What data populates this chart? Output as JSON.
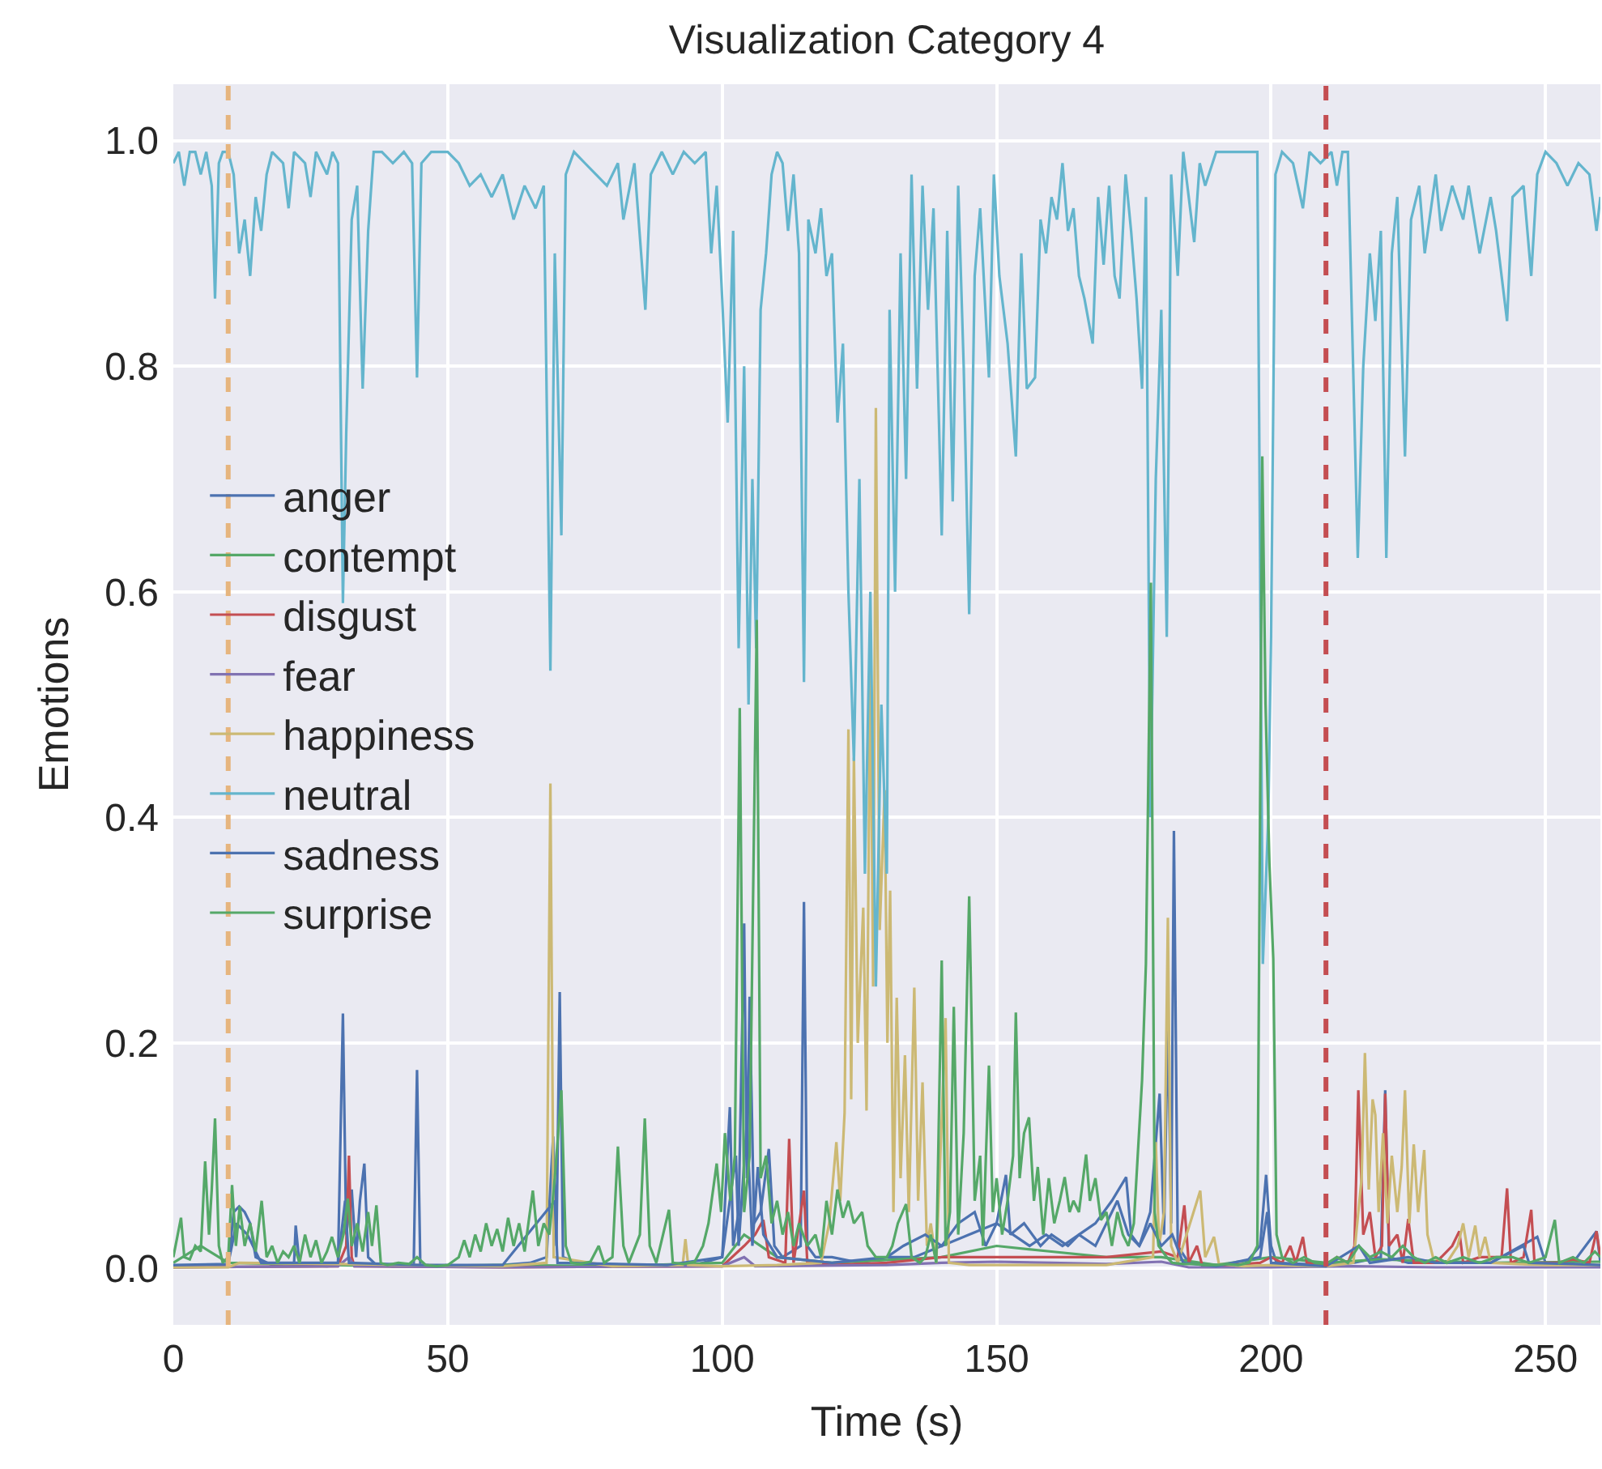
{
  "chart_data": {
    "type": "line",
    "title": "Visualization Category 4",
    "xlabel": "Time (s)",
    "ylabel": "Emotions",
    "xlim": [
      0,
      260
    ],
    "xticks": [
      0,
      50,
      100,
      150,
      200,
      250
    ],
    "ylim": [
      -0.05,
      1.05
    ],
    "yticks": [
      {
        "value": 0,
        "label": "0.0"
      },
      {
        "value": 0.2,
        "label": "0.2"
      },
      {
        "value": 0.4,
        "label": "0.4"
      },
      {
        "value": 0.6,
        "label": "0.6"
      },
      {
        "value": 0.8,
        "label": "0.8"
      },
      {
        "value": 1.0,
        "label": "1.0"
      }
    ],
    "grid": true,
    "legend": "left",
    "ref_lines": [
      {
        "axis": "x",
        "value": 10,
        "color": "#e6b57e",
        "line_style": "dashed"
      },
      {
        "axis": "x",
        "value": 210,
        "color": "#c44e52",
        "line_style": "dashed"
      }
    ],
    "series": [
      {
        "name": "anger",
        "color": "#4c72b0",
        "x": [
          0,
          5,
          10,
          11,
          12,
          13,
          14,
          15,
          18,
          22,
          22.3,
          23,
          28,
          30,
          30.9,
          31.5,
          32.5,
          33.3,
          34,
          34.8,
          35.5,
          37,
          40,
          43.8,
          44.4,
          45,
          50,
          60,
          65,
          68,
          69.2,
          69.8,
          70.4,
          71,
          75,
          85,
          95,
          100,
          101.4,
          102,
          103,
          104,
          104.5,
          105,
          105.8,
          107,
          108.5,
          109.5,
          111,
          114.3,
          114.9,
          115.5,
          117,
          120,
          125,
          130,
          135,
          140,
          145,
          150,
          151.7,
          152.5,
          155,
          158,
          160,
          163,
          165,
          168,
          171,
          173.6,
          174.5,
          176,
          178,
          179.7,
          180.5,
          181.2,
          181.8,
          182.3,
          183,
          185,
          190,
          195,
          198,
          199.1,
          200,
          201,
          210,
          215,
          220,
          220.8,
          221.5,
          225,
          230,
          240,
          248.5,
          250,
          255,
          259.3,
          260
        ],
        "values": [
          0.002,
          0.003,
          0.002,
          0.05,
          0.055,
          0.05,
          0.04,
          0.01,
          0.003,
          0.005,
          0.038,
          0.003,
          0.002,
          0.003,
          0.226,
          0.03,
          0.07,
          0.01,
          0.06,
          0.093,
          0.01,
          0.003,
          0.002,
          0.003,
          0.176,
          0.003,
          0.002,
          0.003,
          0.005,
          0.01,
          0.117,
          0.02,
          0.245,
          0.01,
          0.003,
          0.003,
          0.003,
          0.01,
          0.143,
          0.02,
          0.05,
          0.306,
          0.08,
          0.241,
          0.04,
          0.05,
          0.106,
          0.02,
          0.01,
          0.02,
          0.325,
          0.02,
          0.01,
          0.01,
          0.005,
          0.01,
          0.01,
          0.02,
          0.03,
          0.04,
          0.083,
          0.03,
          0.04,
          0.02,
          0.03,
          0.02,
          0.03,
          0.04,
          0.06,
          0.081,
          0.03,
          0.02,
          0.05,
          0.155,
          0.03,
          0.222,
          0.04,
          0.388,
          0.02,
          0.005,
          0.003,
          0.003,
          0.02,
          0.083,
          0.02,
          0.005,
          0.003,
          0.005,
          0.01,
          0.158,
          0.01,
          0.005,
          0.005,
          0.005,
          0.028,
          0.005,
          0.005,
          0.033,
          0.005
        ]
      },
      {
        "name": "contempt",
        "color": "#55a868",
        "x": [
          0,
          5,
          10,
          20,
          40,
          60,
          80,
          100,
          104,
          110,
          120,
          140,
          150,
          160,
          170,
          180,
          190,
          200,
          210,
          220,
          240,
          260
        ],
        "values": [
          0.005,
          0.02,
          0.005,
          0.004,
          0.002,
          0.003,
          0.002,
          0.005,
          0.03,
          0.01,
          0.005,
          0.01,
          0.02,
          0.015,
          0.01,
          0.01,
          0.003,
          0.01,
          0.005,
          0.008,
          0.005,
          0.006
        ]
      },
      {
        "name": "disgust",
        "color": "#c44e52",
        "x": [
          0,
          30,
          31.5,
          32,
          32.5,
          33,
          60,
          100,
          104,
          106,
          107.5,
          108.5,
          111.5,
          112.2,
          113,
          114.9,
          115.5,
          120,
          130,
          140,
          150,
          160,
          170,
          180,
          183,
          184.2,
          185,
          186.5,
          187.5,
          190,
          198,
          200,
          202,
          203.5,
          204.5,
          205.8,
          206.5,
          210,
          212,
          214,
          215.2,
          215.9,
          216.8,
          218,
          219,
          220.2,
          220.8,
          221.5,
          223,
          224,
          225,
          226,
          230,
          233,
          234.3,
          235,
          238,
          242,
          243,
          243.7,
          246,
          247.4,
          248,
          252,
          255,
          258,
          259.3,
          260
        ],
        "values": [
          0.001,
          0.002,
          0.02,
          0.1,
          0.01,
          0.002,
          0.001,
          0.002,
          0.02,
          0.03,
          0.043,
          0.01,
          0.005,
          0.115,
          0.005,
          0.069,
          0.005,
          0.003,
          0.005,
          0.01,
          0.01,
          0.01,
          0.01,
          0.015,
          0.01,
          0.056,
          0.005,
          0.02,
          0.002,
          0.002,
          0.005,
          0.01,
          0.005,
          0.02,
          0.005,
          0.028,
          0.005,
          0.003,
          0.01,
          0.005,
          0.02,
          0.158,
          0.03,
          0.05,
          0.01,
          0.02,
          0.155,
          0.02,
          0.03,
          0.005,
          0.044,
          0.005,
          0.005,
          0.02,
          0.033,
          0.005,
          0.01,
          0.01,
          0.071,
          0.005,
          0.01,
          0.052,
          0.005,
          0.005,
          0.008,
          0.005,
          0.033,
          0.01
        ]
      },
      {
        "name": "fear",
        "color": "#8172b2",
        "x": [
          0,
          30,
          32,
          33,
          60,
          100,
          104,
          106,
          130,
          140,
          150,
          160,
          170,
          180,
          185,
          200,
          215,
          230,
          260
        ],
        "values": [
          0.001,
          0.002,
          0.01,
          0.002,
          0.001,
          0.002,
          0.01,
          0.002,
          0.003,
          0.005,
          0.006,
          0.005,
          0.004,
          0.006,
          0.001,
          0.001,
          0.002,
          0.001,
          0.001
        ]
      },
      {
        "name": "happiness",
        "color": "#ccb974",
        "x": [
          0,
          10,
          12,
          30,
          60,
          68,
          68.7,
          69.3,
          80,
          92.8,
          93.3,
          93.8,
          100,
          110,
          118,
          119.5,
          120.8,
          121.5,
          122.3,
          123,
          123.5,
          124,
          124.7,
          125.7,
          126.3,
          127,
          127.5,
          128,
          128.7,
          129.6,
          130.1,
          130.6,
          131.2,
          131.8,
          132.5,
          133.3,
          134,
          135,
          135.7,
          136.5,
          137.3,
          138,
          139,
          140.7,
          141.3,
          145,
          150,
          160,
          170,
          178.5,
          179,
          179.6,
          180.5,
          181.2,
          181.8,
          183,
          187.1,
          188,
          189.6,
          190.5,
          195,
          200,
          210,
          215,
          216.5,
          217.1,
          217.8,
          218.5,
          219,
          219.6,
          220.4,
          221.2,
          222,
          223,
          223.8,
          224.4,
          225.2,
          226,
          226.8,
          227.9,
          228.5,
          229.5,
          232,
          234,
          235,
          236,
          237.2,
          238,
          239,
          240,
          245,
          250,
          260
        ],
        "values": [
          0.001,
          0.001,
          0.005,
          0.004,
          0.002,
          0.005,
          0.43,
          0.01,
          0.002,
          0.003,
          0.026,
          0.003,
          0.002,
          0.003,
          0.005,
          0.04,
          0.112,
          0.06,
          0.138,
          0.478,
          0.15,
          0.453,
          0.2,
          0.32,
          0.14,
          0.55,
          0.25,
          0.763,
          0.3,
          0.424,
          0.2,
          0.335,
          0.05,
          0.24,
          0.08,
          0.189,
          0.05,
          0.249,
          0.06,
          0.165,
          0.02,
          0.04,
          0.005,
          0.222,
          0.005,
          0.003,
          0.003,
          0.003,
          0.003,
          0.01,
          0.112,
          0.02,
          0.05,
          0.311,
          0.02,
          0.005,
          0.069,
          0.01,
          0.028,
          0.004,
          0.002,
          0.003,
          0.002,
          0.005,
          0.08,
          0.191,
          0.07,
          0.15,
          0.136,
          0.05,
          0.12,
          0.04,
          0.1,
          0.05,
          0.09,
          0.158,
          0.04,
          0.11,
          0.05,
          0.105,
          0.03,
          0.01,
          0.005,
          0.02,
          0.04,
          0.01,
          0.038,
          0.01,
          0.028,
          0.005,
          0.004,
          0.003,
          0.003
        ]
      },
      {
        "name": "neutral",
        "color": "#64b5cd",
        "x": [
          0,
          1,
          2,
          3,
          4,
          5,
          6,
          7,
          7.6,
          8.3,
          9,
          10,
          11,
          12,
          13,
          14,
          15,
          16,
          17,
          18,
          20,
          21,
          22,
          24,
          25,
          26,
          28,
          29,
          30,
          30.9,
          31.5,
          32.5,
          33.5,
          34.5,
          35.5,
          36.5,
          38,
          40,
          42,
          43.5,
          44.4,
          45.2,
          47,
          50,
          52,
          54,
          56,
          58,
          60,
          62,
          64,
          66,
          67.5,
          68.7,
          69.5,
          70.7,
          71.5,
          73,
          75,
          77,
          79,
          81,
          82,
          84,
          86,
          87,
          89,
          91,
          93,
          95,
          97,
          98,
          99,
          100,
          101,
          102,
          103,
          104,
          104.8,
          105.5,
          106.2,
          107,
          108,
          109,
          110,
          111,
          112,
          113,
          114,
          114.9,
          115.7,
          117,
          118,
          119,
          120,
          121,
          122,
          123,
          124,
          125,
          126,
          127,
          128,
          129,
          130,
          130.5,
          131.5,
          132.5,
          133.5,
          134.5,
          135.5,
          136.5,
          137.5,
          138.5,
          139.5,
          140,
          141,
          142,
          143,
          144,
          145,
          146,
          147,
          148.6,
          149.5,
          150.5,
          152,
          153.5,
          154.5,
          155.5,
          157,
          158,
          159,
          160,
          161,
          162,
          163,
          164,
          165,
          166,
          167.5,
          168.5,
          169.5,
          170.5,
          171.5,
          172.4,
          173.5,
          174.5,
          175.5,
          176.5,
          177.2,
          178,
          179,
          180,
          181,
          181.8,
          183,
          184,
          185,
          186,
          187,
          188,
          190,
          192,
          194,
          196,
          197.5,
          198.5,
          199.5,
          200,
          200.8,
          202,
          204,
          205.8,
          207,
          209,
          211,
          212,
          213,
          214,
          215.8,
          216.8,
          218,
          219,
          220,
          221,
          222,
          223,
          224.4,
          225.5,
          227,
          228,
          230,
          231,
          233,
          235,
          236,
          238,
          240,
          241,
          243,
          244,
          246,
          247.4,
          248.5,
          250,
          252,
          254,
          256,
          258,
          259.3,
          260
        ],
        "values": [
          0.98,
          0.99,
          0.96,
          0.99,
          0.99,
          0.97,
          0.99,
          0.96,
          0.86,
          0.98,
          0.99,
          0.99,
          0.97,
          0.9,
          0.93,
          0.88,
          0.95,
          0.92,
          0.97,
          0.99,
          0.98,
          0.94,
          0.99,
          0.98,
          0.95,
          0.99,
          0.97,
          0.99,
          0.98,
          0.59,
          0.74,
          0.93,
          0.96,
          0.78,
          0.92,
          0.99,
          0.99,
          0.98,
          0.99,
          0.98,
          0.79,
          0.98,
          0.99,
          0.99,
          0.98,
          0.96,
          0.97,
          0.95,
          0.97,
          0.93,
          0.96,
          0.94,
          0.96,
          0.53,
          0.9,
          0.65,
          0.97,
          0.99,
          0.98,
          0.97,
          0.96,
          0.98,
          0.93,
          0.98,
          0.85,
          0.97,
          0.99,
          0.97,
          0.99,
          0.98,
          0.99,
          0.9,
          0.96,
          0.86,
          0.75,
          0.92,
          0.55,
          0.8,
          0.5,
          0.7,
          0.55,
          0.85,
          0.9,
          0.97,
          0.99,
          0.98,
          0.92,
          0.97,
          0.9,
          0.52,
          0.93,
          0.9,
          0.94,
          0.88,
          0.9,
          0.75,
          0.82,
          0.6,
          0.45,
          0.7,
          0.35,
          0.6,
          0.25,
          0.5,
          0.35,
          0.85,
          0.6,
          0.9,
          0.7,
          0.97,
          0.78,
          0.96,
          0.85,
          0.94,
          0.75,
          0.65,
          0.92,
          0.68,
          0.96,
          0.8,
          0.58,
          0.88,
          0.94,
          0.79,
          0.97,
          0.88,
          0.82,
          0.72,
          0.9,
          0.78,
          0.79,
          0.93,
          0.9,
          0.95,
          0.93,
          0.98,
          0.92,
          0.94,
          0.88,
          0.86,
          0.82,
          0.95,
          0.89,
          0.96,
          0.88,
          0.86,
          0.97,
          0.92,
          0.86,
          0.78,
          0.95,
          0.4,
          0.7,
          0.85,
          0.56,
          0.97,
          0.88,
          0.99,
          0.95,
          0.91,
          0.98,
          0.96,
          0.99,
          0.99,
          0.99,
          0.99,
          0.99,
          0.27,
          0.4,
          0.56,
          0.97,
          0.99,
          0.98,
          0.94,
          0.99,
          0.98,
          0.99,
          0.96,
          0.99,
          0.99,
          0.63,
          0.8,
          0.9,
          0.84,
          0.92,
          0.63,
          0.9,
          0.95,
          0.72,
          0.93,
          0.96,
          0.9,
          0.97,
          0.92,
          0.96,
          0.93,
          0.96,
          0.9,
          0.95,
          0.92,
          0.84,
          0.95,
          0.96,
          0.88,
          0.97,
          0.99,
          0.98,
          0.96,
          0.98,
          0.97,
          0.92,
          0.95
        ]
      },
      {
        "name": "sadness",
        "color": "#4c72b0",
        "x": [
          0,
          10,
          11.5,
          13.5,
          16,
          30,
          31.3,
          32,
          45,
          60,
          69.5,
          70,
          90,
          100,
          102.5,
          103,
          104.5,
          105.5,
          106.5,
          107.5,
          110,
          120,
          130,
          133,
          137,
          140,
          143,
          146,
          148,
          150,
          153,
          156,
          159,
          162,
          165,
          168,
          170,
          172,
          174,
          176,
          178,
          180,
          182,
          184,
          190,
          198,
          199.3,
          200,
          210,
          216,
          218,
          225,
          230,
          240,
          246,
          247,
          255,
          260
        ],
        "values": [
          0.003,
          0.004,
          0.04,
          0.03,
          0.005,
          0.005,
          0.06,
          0.005,
          0.003,
          0.003,
          0.06,
          0.005,
          0.003,
          0.01,
          0.1,
          0.02,
          0.13,
          0.02,
          0.09,
          0.03,
          0.01,
          0.005,
          0.01,
          0.02,
          0.03,
          0.02,
          0.04,
          0.05,
          0.02,
          0.04,
          0.03,
          0.02,
          0.03,
          0.02,
          0.03,
          0.02,
          0.04,
          0.06,
          0.03,
          0.02,
          0.04,
          0.02,
          0.03,
          0.005,
          0.002,
          0.01,
          0.05,
          0.005,
          0.002,
          0.02,
          0.005,
          0.01,
          0.005,
          0.005,
          0.02,
          0.005,
          0.004,
          0.003
        ]
      },
      {
        "name": "surprise",
        "color": "#55a868",
        "x": [
          0,
          0.8,
          1.4,
          2,
          3,
          4,
          5,
          5.8,
          6.5,
          7,
          7.6,
          8.3,
          9,
          10,
          10.7,
          11.4,
          12.1,
          13,
          14,
          15,
          16.1,
          17,
          18,
          19,
          20,
          21,
          22,
          23,
          24,
          25,
          26,
          27,
          28,
          28.9,
          30,
          31,
          31.8,
          32.5,
          33.5,
          34.5,
          35.5,
          36.2,
          37,
          37.8,
          39,
          41,
          43,
          44.4,
          46,
          48,
          50,
          52,
          53,
          54,
          55,
          56,
          57,
          58,
          59,
          60,
          61,
          62,
          63,
          64,
          65.5,
          66.5,
          67.5,
          68.5,
          69.5,
          70.7,
          71.5,
          72.5,
          74,
          76,
          77.5,
          78.5,
          80,
          81,
          82,
          83,
          85,
          85.9,
          86.8,
          88,
          90.3,
          91,
          93,
          95,
          96.5,
          97.5,
          99,
          99.8,
          100.5,
          101.5,
          102.3,
          103.2,
          104,
          105,
          106.3,
          107,
          108,
          109,
          110,
          111,
          112,
          113,
          114,
          115.5,
          117,
          118,
          119,
          120,
          121,
          122,
          123,
          124,
          125.5,
          126.5,
          128,
          130,
          131,
          132,
          133.5,
          134.5,
          136,
          137,
          138,
          139,
          140,
          140.7,
          141.5,
          142.2,
          143,
          144,
          145,
          145.3,
          146,
          147,
          147.5,
          148.6,
          149.3,
          150,
          151,
          152,
          153,
          153.5,
          154.2,
          155,
          155.9,
          156.8,
          157.5,
          158.5,
          159.5,
          160.5,
          161.5,
          162.4,
          163.3,
          164,
          165,
          166.3,
          167,
          168,
          169,
          170,
          171,
          172,
          173,
          174,
          175,
          176.5,
          177.2,
          178.1,
          178.8,
          179.5,
          181,
          182,
          184,
          186,
          188,
          190,
          192,
          194,
          196,
          197.5,
          198.4,
          199,
          199.7,
          200.4,
          201,
          202,
          204,
          206,
          208,
          210,
          212,
          214,
          216,
          218,
          220,
          222,
          224,
          226,
          228,
          230,
          232,
          235,
          238,
          241,
          244,
          247,
          250,
          251.7,
          252.5,
          255,
          257,
          259,
          260
        ],
        "values": [
          0.01,
          0.03,
          0.045,
          0.01,
          0.008,
          0.02,
          0.015,
          0.095,
          0.03,
          0.07,
          0.133,
          0.02,
          0.005,
          0.01,
          0.074,
          0.02,
          0.055,
          0.02,
          0.04,
          0.015,
          0.06,
          0.01,
          0.02,
          0.005,
          0.015,
          0.01,
          0.02,
          0.005,
          0.03,
          0.01,
          0.025,
          0.005,
          0.015,
          0.028,
          0.01,
          0.03,
          0.062,
          0.02,
          0.04,
          0.015,
          0.05,
          0.02,
          0.056,
          0.005,
          0.003,
          0.005,
          0.004,
          0.01,
          0.003,
          0.002,
          0.003,
          0.01,
          0.025,
          0.01,
          0.03,
          0.015,
          0.04,
          0.02,
          0.035,
          0.015,
          0.045,
          0.02,
          0.04,
          0.015,
          0.069,
          0.02,
          0.04,
          0.03,
          0.08,
          0.158,
          0.02,
          0.005,
          0.004,
          0.006,
          0.02,
          0.005,
          0.01,
          0.108,
          0.02,
          0.005,
          0.03,
          0.133,
          0.02,
          0.005,
          0.052,
          0.005,
          0.004,
          0.006,
          0.02,
          0.04,
          0.093,
          0.05,
          0.12,
          0.06,
          0.1,
          0.497,
          0.05,
          0.1,
          0.575,
          0.08,
          0.1,
          0.04,
          0.06,
          0.03,
          0.05,
          0.02,
          0.04,
          0.02,
          0.03,
          0.01,
          0.06,
          0.03,
          0.07,
          0.045,
          0.06,
          0.04,
          0.05,
          0.02,
          0.01,
          0.01,
          0.02,
          0.04,
          0.057,
          0.01,
          0.005,
          0.01,
          0.03,
          0.005,
          0.273,
          0.02,
          0.05,
          0.232,
          0.03,
          0.12,
          0.33,
          0.256,
          0.06,
          0.1,
          0.02,
          0.18,
          0.05,
          0.08,
          0.03,
          0.06,
          0.1,
          0.227,
          0.08,
          0.12,
          0.134,
          0.06,
          0.09,
          0.03,
          0.08,
          0.04,
          0.06,
          0.081,
          0.05,
          0.06,
          0.05,
          0.101,
          0.06,
          0.08,
          0.043,
          0.05,
          0.02,
          0.05,
          0.03,
          0.02,
          0.04,
          0.167,
          0.27,
          0.608,
          0.05,
          0.02,
          0.01,
          0.005,
          0.004,
          0.004,
          0.003,
          0.003,
          0.004,
          0.003,
          0.005,
          0.02,
          0.72,
          0.5,
          0.359,
          0.275,
          0.03,
          0.01,
          0.005,
          0.01,
          0.005,
          0.004,
          0.01,
          0.005,
          0.02,
          0.01,
          0.015,
          0.01,
          0.02,
          0.01,
          0.005,
          0.01,
          0.005,
          0.01,
          0.005,
          0.01,
          0.01,
          0.005,
          0.01,
          0.043,
          0.005,
          0.01,
          0.005,
          0.015,
          0.01
        ]
      }
    ]
  }
}
